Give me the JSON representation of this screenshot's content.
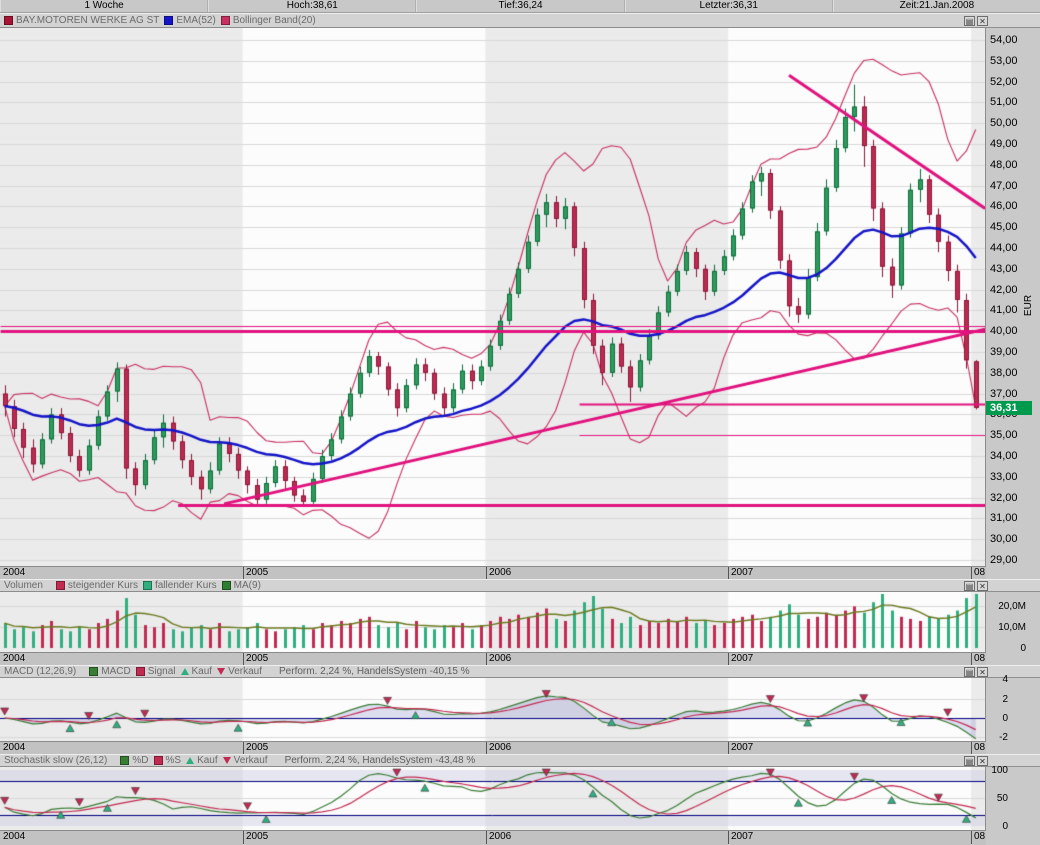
{
  "quote_bar": {
    "period": "1 Woche",
    "hoch": "Hoch:38,61",
    "tief": "Tief:36,24",
    "letzter": "Letzter:36,31",
    "zeit": "Zeit:21.Jan.2008"
  },
  "window_icons": {
    "properties": "▤",
    "close": "✕"
  },
  "panels": {
    "main": {
      "legend": [
        {
          "label": "BAY.MOTOREN WERKE AG ST",
          "color": "#A81433"
        },
        {
          "label": "EMA(52)",
          "color": "#1414C8"
        },
        {
          "label": "Bollinger Band(20)",
          "color": "#C73060"
        }
      ],
      "axis_unit": "EUR",
      "current_price": "36,31",
      "current_price_value": 36.31
    },
    "volume": {
      "title": "Volumen",
      "legend": [
        {
          "label": "steigender Kurs",
          "color": "#C22A52"
        },
        {
          "label": "fallender Kurs",
          "color": "#2FAF7F"
        },
        {
          "label": "MA(9)",
          "color": "#2E7D32"
        }
      ]
    },
    "macd": {
      "title": "MACD (12,26,9)",
      "legend_macd": "MACD",
      "legend_signal": "Signal",
      "legend_buy": "Kauf",
      "legend_sell": "Verkauf",
      "performance": "Perform. 2,24 %, HandelsSystem -40,15 %"
    },
    "stoch": {
      "title": "Stochastik slow (26,12)",
      "legend_d": "%D",
      "legend_s": "%S",
      "legend_buy": "Kauf",
      "legend_sell": "Verkauf",
      "performance": "Perform. 2,24 %, HandelsSystem -43,48 %"
    }
  },
  "x_axis": {
    "years": [
      "2004",
      "2005",
      "2006",
      "2007",
      "08"
    ]
  },
  "chart_data": {
    "type": "candlestick",
    "instrument": "BAY.MOTOREN WERKE AG ST",
    "timeframe": "1 Woche",
    "price_axis": {
      "min": 29,
      "max": 54,
      "step": 1,
      "unit": "EUR",
      "labels": [
        "54,00",
        "53,00",
        "52,00",
        "51,00",
        "50,00",
        "49,00",
        "48,00",
        "47,00",
        "46,00",
        "45,00",
        "44,00",
        "43,00",
        "42,00",
        "41,00",
        "40,00",
        "39,00",
        "38,00",
        "37,00",
        "36,00",
        "35,00",
        "34,00",
        "33,00",
        "32,00",
        "31,00",
        "30,00",
        "29,00"
      ]
    },
    "volume_axis": {
      "ticks": [
        {
          "label": "20,0M",
          "value": 20
        },
        {
          "label": "10,0M",
          "value": 10
        },
        {
          "label": "0",
          "value": 0
        }
      ]
    },
    "macd_axis": {
      "ticks": [
        {
          "label": "4",
          "value": 4
        },
        {
          "label": "2",
          "value": 2
        },
        {
          "label": "0",
          "value": 0
        },
        {
          "label": "-2",
          "value": -2
        }
      ]
    },
    "stoch_axis": {
      "ticks": [
        {
          "label": "100",
          "value": 100
        },
        {
          "label": "50",
          "value": 50
        },
        {
          "label": "0",
          "value": 0
        }
      ],
      "levels": [
        80,
        20
      ]
    },
    "year_start_indices": [
      0,
      26,
      52,
      78,
      104
    ],
    "candles": [
      [
        37.0,
        37.4,
        35.9,
        36.4
      ],
      [
        36.4,
        36.7,
        34.9,
        35.3
      ],
      [
        35.3,
        35.6,
        33.9,
        34.4
      ],
      [
        34.4,
        34.8,
        33.2,
        33.6
      ],
      [
        33.6,
        35.1,
        33.4,
        34.8
      ],
      [
        34.8,
        36.3,
        34.6,
        36.0
      ],
      [
        36.0,
        36.3,
        34.8,
        35.1
      ],
      [
        35.1,
        35.4,
        33.7,
        34.0
      ],
      [
        34.0,
        34.3,
        33.0,
        33.3
      ],
      [
        33.3,
        34.8,
        33.1,
        34.5
      ],
      [
        34.5,
        36.2,
        34.3,
        35.9
      ],
      [
        35.9,
        37.4,
        35.7,
        37.1
      ],
      [
        37.1,
        38.5,
        36.6,
        38.2
      ],
      [
        38.2,
        38.4,
        32.9,
        33.4
      ],
      [
        33.4,
        33.7,
        32.1,
        32.6
      ],
      [
        32.6,
        34.1,
        32.4,
        33.8
      ],
      [
        33.8,
        35.3,
        33.6,
        34.9
      ],
      [
        34.9,
        36.0,
        34.4,
        35.6
      ],
      [
        35.6,
        35.9,
        34.3,
        34.7
      ],
      [
        34.7,
        35.0,
        33.4,
        33.8
      ],
      [
        33.8,
        34.1,
        32.6,
        33.0
      ],
      [
        33.0,
        33.3,
        31.9,
        32.4
      ],
      [
        32.4,
        33.7,
        32.2,
        33.3
      ],
      [
        33.3,
        34.9,
        33.1,
        34.6
      ],
      [
        34.6,
        34.9,
        33.7,
        34.1
      ],
      [
        34.1,
        34.4,
        32.9,
        33.3
      ],
      [
        33.3,
        33.5,
        32.2,
        32.6
      ],
      [
        32.6,
        32.9,
        31.6,
        31.9
      ],
      [
        31.9,
        33.0,
        31.7,
        32.7
      ],
      [
        32.7,
        33.8,
        32.5,
        33.5
      ],
      [
        33.5,
        33.8,
        32.4,
        32.8
      ],
      [
        32.8,
        33.0,
        31.8,
        32.1
      ],
      [
        32.1,
        32.4,
        31.6,
        31.8
      ],
      [
        31.8,
        33.2,
        31.7,
        32.9
      ],
      [
        32.9,
        34.3,
        32.7,
        34.0
      ],
      [
        34.0,
        35.1,
        33.8,
        34.8
      ],
      [
        34.8,
        36.2,
        34.6,
        35.9
      ],
      [
        35.9,
        37.3,
        35.7,
        37.0
      ],
      [
        37.0,
        38.3,
        36.8,
        38.0
      ],
      [
        38.0,
        39.1,
        37.8,
        38.8
      ],
      [
        38.8,
        39.0,
        37.9,
        38.3
      ],
      [
        38.3,
        38.5,
        36.9,
        37.2
      ],
      [
        37.2,
        37.5,
        35.9,
        36.3
      ],
      [
        36.3,
        37.7,
        36.1,
        37.4
      ],
      [
        37.4,
        38.7,
        37.2,
        38.4
      ],
      [
        38.4,
        38.7,
        37.6,
        38.0
      ],
      [
        38.0,
        38.2,
        36.7,
        37.0
      ],
      [
        37.0,
        37.3,
        35.9,
        36.3
      ],
      [
        36.3,
        37.5,
        36.1,
        37.2
      ],
      [
        37.2,
        38.4,
        37.0,
        38.1
      ],
      [
        38.1,
        38.4,
        37.2,
        37.6
      ],
      [
        37.6,
        38.6,
        37.4,
        38.3
      ],
      [
        38.3,
        39.6,
        38.1,
        39.3
      ],
      [
        39.3,
        40.8,
        39.1,
        40.5
      ],
      [
        40.5,
        42.1,
        40.3,
        41.8
      ],
      [
        41.8,
        43.3,
        41.6,
        43.0
      ],
      [
        43.0,
        44.6,
        42.8,
        44.3
      ],
      [
        44.3,
        45.9,
        44.1,
        45.6
      ],
      [
        45.6,
        46.6,
        45.0,
        46.2
      ],
      [
        46.2,
        46.5,
        45.0,
        45.4
      ],
      [
        45.4,
        46.4,
        44.9,
        46.0
      ],
      [
        46.0,
        46.2,
        43.6,
        44.0
      ],
      [
        44.0,
        44.3,
        41.1,
        41.5
      ],
      [
        41.5,
        41.8,
        38.9,
        39.3
      ],
      [
        39.3,
        39.6,
        37.4,
        38.0
      ],
      [
        38.0,
        39.7,
        37.8,
        39.4
      ],
      [
        39.4,
        39.7,
        38.0,
        38.3
      ],
      [
        38.3,
        38.6,
        36.6,
        37.3
      ],
      [
        37.3,
        38.9,
        37.1,
        38.6
      ],
      [
        38.6,
        40.1,
        38.4,
        39.8
      ],
      [
        39.8,
        41.2,
        39.6,
        40.9
      ],
      [
        40.9,
        42.2,
        40.7,
        41.9
      ],
      [
        41.9,
        43.2,
        41.7,
        42.9
      ],
      [
        42.9,
        44.1,
        42.7,
        43.8
      ],
      [
        43.8,
        44.0,
        42.6,
        43.0
      ],
      [
        43.0,
        43.2,
        41.5,
        41.9
      ],
      [
        41.9,
        43.2,
        41.7,
        42.9
      ],
      [
        42.9,
        43.9,
        42.7,
        43.6
      ],
      [
        43.6,
        44.9,
        43.4,
        44.6
      ],
      [
        44.6,
        46.2,
        44.4,
        45.9
      ],
      [
        45.9,
        47.5,
        45.7,
        47.2
      ],
      [
        47.2,
        47.9,
        46.5,
        47.6
      ],
      [
        47.6,
        47.8,
        45.4,
        45.8
      ],
      [
        45.8,
        46.0,
        43.0,
        43.4
      ],
      [
        43.4,
        43.7,
        40.7,
        41.2
      ],
      [
        41.2,
        41.6,
        40.4,
        40.8
      ],
      [
        40.8,
        43.0,
        40.6,
        42.6
      ],
      [
        42.6,
        45.2,
        42.4,
        44.8
      ],
      [
        44.8,
        47.3,
        44.6,
        46.9
      ],
      [
        46.9,
        49.2,
        46.7,
        48.8
      ],
      [
        48.8,
        50.7,
        48.6,
        50.3
      ],
      [
        50.3,
        51.85,
        49.6,
        50.8
      ],
      [
        50.8,
        51.3,
        47.9,
        48.9
      ],
      [
        48.9,
        49.2,
        45.3,
        45.9
      ],
      [
        45.9,
        46.2,
        42.6,
        43.1
      ],
      [
        43.1,
        43.5,
        41.6,
        42.2
      ],
      [
        42.2,
        45.0,
        42.0,
        44.7
      ],
      [
        44.7,
        47.1,
        44.5,
        46.8
      ],
      [
        46.8,
        47.8,
        46.2,
        47.3
      ],
      [
        47.3,
        47.5,
        45.2,
        45.6
      ],
      [
        45.6,
        45.9,
        43.8,
        44.3
      ],
      [
        44.3,
        44.6,
        42.4,
        42.9
      ],
      [
        42.9,
        43.2,
        40.9,
        41.5
      ],
      [
        41.5,
        41.8,
        38.2,
        38.6
      ],
      [
        38.55,
        38.61,
        36.24,
        36.31
      ]
    ],
    "volumes_millions": [
      12,
      9,
      10,
      8,
      11,
      13,
      9,
      8,
      10,
      9,
      12,
      14,
      18,
      24,
      16,
      11,
      10,
      12,
      9,
      8,
      10,
      11,
      9,
      12,
      8,
      9,
      10,
      12,
      9,
      8,
      9,
      10,
      11,
      9,
      12,
      11,
      13,
      12,
      14,
      15,
      11,
      10,
      12,
      9,
      13,
      10,
      9,
      11,
      10,
      12,
      9,
      11,
      13,
      15,
      14,
      16,
      15,
      17,
      19,
      14,
      13,
      18,
      22,
      25,
      19,
      14,
      12,
      15,
      11,
      13,
      12,
      14,
      13,
      15,
      12,
      13,
      11,
      12,
      14,
      15,
      16,
      13,
      15,
      18,
      21,
      16,
      14,
      15,
      17,
      16,
      18,
      20,
      17,
      22,
      26,
      18,
      15,
      14,
      13,
      15,
      14,
      16,
      18,
      24,
      27
    ],
    "indicators": {
      "ema_period_weeks": 52,
      "bollinger": {
        "period_weeks": 20,
        "stddev": 2
      },
      "volume_ma_weeks": 9,
      "macd_params": [
        12,
        26,
        9
      ],
      "stoch_params": [
        26,
        12
      ]
    },
    "annotations": {
      "hlines": [
        {
          "price": 40.25,
          "from_index": 0,
          "lw": 1
        },
        {
          "price": 40.0,
          "from_index": 0,
          "lw": 3
        },
        {
          "price": 36.5,
          "from_index": 62,
          "lw": 2
        },
        {
          "price": 35.0,
          "from_index": 62,
          "lw": 1
        },
        {
          "price": 31.65,
          "from_index": 19,
          "lw": 3
        }
      ],
      "trendlines": [
        {
          "from": [
            23.5,
            31.7
          ],
          "to": [
            105,
            40.1
          ],
          "lw": 3
        },
        {
          "from": [
            84,
            52.3
          ],
          "to": [
            105,
            45.9
          ],
          "lw": 3
        }
      ]
    },
    "signals": {
      "macd": [
        {
          "i": 0,
          "type": "verkauf"
        },
        {
          "i": 7,
          "type": "kauf"
        },
        {
          "i": 9,
          "type": "verkauf"
        },
        {
          "i": 12,
          "type": "kauf"
        },
        {
          "i": 15,
          "type": "verkauf"
        },
        {
          "i": 25,
          "type": "kauf"
        },
        {
          "i": 41,
          "type": "verkauf"
        },
        {
          "i": 44,
          "type": "kauf"
        },
        {
          "i": 58,
          "type": "verkauf"
        },
        {
          "i": 65,
          "type": "kauf"
        },
        {
          "i": 82,
          "type": "verkauf"
        },
        {
          "i": 86,
          "type": "kauf"
        },
        {
          "i": 92,
          "type": "verkauf"
        },
        {
          "i": 96,
          "type": "kauf"
        },
        {
          "i": 101,
          "type": "verkauf"
        }
      ],
      "stoch": [
        {
          "i": 0,
          "type": "verkauf"
        },
        {
          "i": 6,
          "type": "kauf"
        },
        {
          "i": 8,
          "type": "verkauf"
        },
        {
          "i": 11,
          "type": "kauf"
        },
        {
          "i": 14,
          "type": "verkauf"
        },
        {
          "i": 26,
          "type": "verkauf"
        },
        {
          "i": 28,
          "type": "kauf"
        },
        {
          "i": 42,
          "type": "verkauf"
        },
        {
          "i": 45,
          "type": "kauf"
        },
        {
          "i": 58,
          "type": "verkauf"
        },
        {
          "i": 63,
          "type": "kauf"
        },
        {
          "i": 82,
          "type": "verkauf"
        },
        {
          "i": 85,
          "type": "kauf"
        },
        {
          "i": 91,
          "type": "verkauf"
        },
        {
          "i": 95,
          "type": "kauf"
        },
        {
          "i": 100,
          "type": "verkauf"
        },
        {
          "i": 103,
          "type": "kauf"
        }
      ]
    },
    "colors": {
      "bull": "#2D9C5C",
      "bullBorder": "#0E6B3B",
      "bear": "#BC2B52",
      "bearBorder": "#8C1638",
      "ema": "#1414C8",
      "bollinger": "#C73060",
      "annotation": "#E1127E",
      "volUp": "#C22A52",
      "volDown": "#2FAF7F",
      "volMa": "#6B7A1F",
      "macdLine": "#3A7D35",
      "signalLine": "#C22A52",
      "zeroLine": "#00007F",
      "stochD": "#3A7D35",
      "stochS": "#C22A52",
      "stochLevel": "#00007F",
      "macdFill": "rgba(140,140,210,0.28)",
      "stochBand": "rgba(205,205,228,0.45)",
      "priceTag": "#009A4E",
      "bandGray": "#EBEBEB",
      "bandWhite": "#FCFCFC",
      "grid": "#D9D9D9",
      "buyMarker": "#2FAF7F",
      "sellMarker": "#C22A52"
    }
  }
}
